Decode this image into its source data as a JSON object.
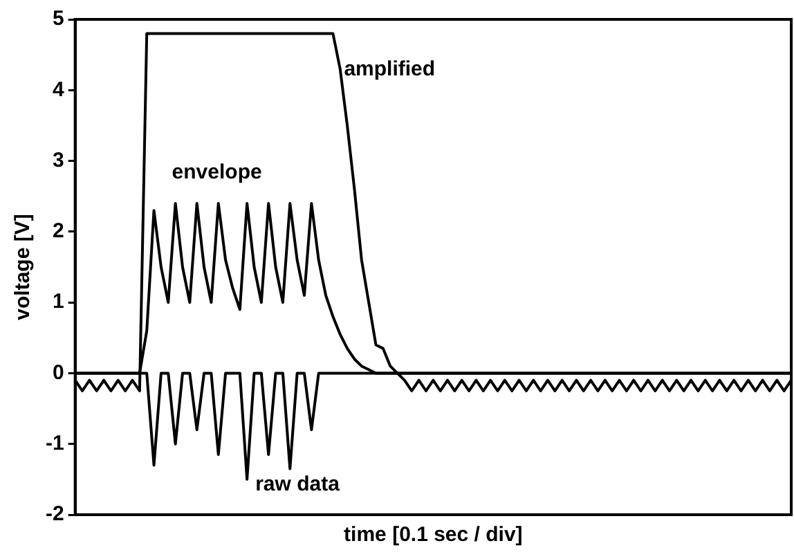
{
  "chart_data": {
    "type": "line",
    "xlabel": "time [0.1 sec / div]",
    "ylabel": "voltage [V]",
    "categories": [
      null,
      null,
      null,
      null,
      null,
      null,
      null,
      null,
      null,
      null,
      null,
      null,
      null,
      null,
      null,
      null,
      null,
      null,
      null,
      null,
      null,
      null,
      null,
      null,
      null,
      null,
      null,
      null,
      null,
      null,
      null,
      null,
      null,
      null,
      null,
      null,
      null,
      null,
      null,
      null,
      null,
      null,
      null,
      null,
      null,
      null,
      null,
      null,
      null,
      null,
      null,
      null,
      null,
      null,
      null,
      null,
      null,
      null,
      null,
      null,
      null,
      null,
      null,
      null,
      null,
      null,
      null,
      null,
      null,
      null,
      null,
      null,
      null,
      null,
      null,
      null,
      null,
      null,
      null,
      null,
      null,
      null,
      null,
      null,
      null,
      null,
      null,
      null,
      null,
      null,
      null,
      null,
      null,
      null,
      null,
      null,
      null,
      null,
      null,
      null,
      null
    ],
    "ylim": [
      -2,
      5
    ],
    "yticks": [
      -2,
      -1,
      0,
      1,
      2,
      3,
      4,
      5
    ],
    "tick_labels": "y",
    "grid": false,
    "legend": false,
    "marker": "none",
    "line_style": "solid",
    "series": [
      {
        "name": "amplified",
        "color": "#000000",
        "values": [
          -0.1,
          -0.25,
          -0.1,
          -0.25,
          -0.1,
          -0.25,
          -0.1,
          -0.25,
          -0.1,
          -0.25,
          4.8,
          4.8,
          4.8,
          4.8,
          4.8,
          4.8,
          4.8,
          4.8,
          4.8,
          4.8,
          4.8,
          4.8,
          4.8,
          4.8,
          4.8,
          4.8,
          4.8,
          4.8,
          4.8,
          4.8,
          4.8,
          4.8,
          4.8,
          4.8,
          4.8,
          4.8,
          4.8,
          4.3,
          3.5,
          2.6,
          1.6,
          1.0,
          0.4,
          0.35,
          0.1,
          0,
          -0.1,
          -0.25,
          -0.1,
          -0.25,
          -0.1,
          -0.25,
          -0.1,
          -0.25,
          -0.1,
          -0.25,
          -0.1,
          -0.25,
          -0.1,
          -0.25,
          -0.1,
          -0.25,
          -0.1,
          -0.25,
          -0.1,
          -0.25,
          -0.1,
          -0.25,
          -0.1,
          -0.25,
          -0.1,
          -0.25,
          -0.1,
          -0.25,
          -0.1,
          -0.25,
          -0.1,
          -0.25,
          -0.1,
          -0.25,
          -0.1,
          -0.25,
          -0.1,
          -0.25,
          -0.1,
          -0.25,
          -0.1,
          -0.25,
          -0.1,
          -0.25,
          -0.1,
          -0.25,
          -0.1,
          -0.25,
          -0.1,
          -0.25,
          -0.1,
          -0.25,
          -0.1,
          -0.25,
          -0.1
        ]
      },
      {
        "name": "envelope",
        "color": "#000000",
        "values": [
          0,
          0,
          0,
          0,
          0,
          0,
          0,
          0,
          0,
          0,
          0.6,
          2.3,
          1.5,
          1.0,
          2.4,
          1.5,
          1.0,
          2.4,
          1.5,
          1.0,
          2.4,
          1.6,
          1.2,
          0.9,
          2.4,
          1.5,
          1.0,
          2.4,
          1.5,
          1.0,
          2.4,
          1.6,
          1.1,
          2.4,
          1.6,
          1.1,
          0.8,
          0.55,
          0.35,
          0.2,
          0.1,
          0.05,
          0,
          0,
          0,
          0,
          0,
          0,
          0,
          0,
          0,
          0,
          0,
          0,
          0,
          0,
          0,
          0,
          0,
          0,
          0,
          0,
          0,
          0,
          0,
          0,
          0,
          0,
          0,
          0,
          0,
          0,
          0,
          0,
          0,
          0,
          0,
          0,
          0,
          0,
          0,
          0,
          0,
          0,
          0,
          0,
          0,
          0,
          0,
          0,
          0,
          0,
          0,
          0,
          0,
          0,
          0,
          0,
          0,
          0,
          0
        ]
      },
      {
        "name": "raw data",
        "color": "#000000",
        "values": [
          0,
          0,
          0,
          0,
          0,
          0,
          0,
          0,
          0,
          0,
          0,
          -1.3,
          0,
          0,
          -1.0,
          0,
          0,
          -0.8,
          0,
          0,
          -1.15,
          0,
          0,
          0,
          -1.5,
          0,
          0,
          -1.15,
          0,
          0,
          -1.35,
          0,
          0,
          -0.8,
          0,
          0,
          0,
          0,
          0,
          0,
          0,
          0,
          0,
          0,
          0,
          0,
          0,
          0,
          0,
          0,
          0,
          0,
          0,
          0,
          0,
          0,
          0,
          0,
          0,
          0,
          0,
          0,
          0,
          0,
          0,
          0,
          0,
          0,
          0,
          0,
          0,
          0,
          0,
          0,
          0,
          0,
          0,
          0,
          0,
          0,
          0,
          0,
          0,
          0,
          0,
          0,
          0,
          0,
          0,
          0,
          0,
          0,
          0,
          0,
          0,
          0,
          0,
          0,
          0,
          0,
          0
        ]
      }
    ]
  }
}
